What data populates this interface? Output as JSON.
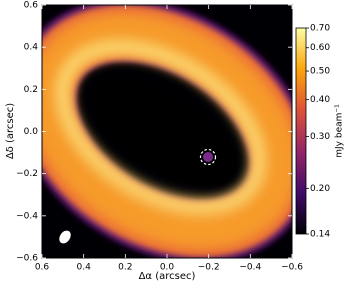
{
  "chart_data": {
    "type": "image",
    "xlabel": "Δα (arcsec)",
    "ylabel": "Δδ (arcsec)",
    "xlim": [
      0.6,
      -0.6
    ],
    "ylim": [
      -0.6,
      0.6
    ],
    "xticks": [
      0.6,
      0.4,
      0.2,
      {
        "value": 0,
        "label": "0.0"
      },
      {
        "value": -0.2,
        "label": "−0.2"
      },
      {
        "value": -0.4,
        "label": "−0.4"
      },
      {
        "value": -0.6,
        "label": "−0.6"
      }
    ],
    "yticks": [
      {
        "value": -0.6,
        "label": "−0.6"
      },
      {
        "value": -0.4,
        "label": "−0.4"
      },
      {
        "value": -0.2,
        "label": "−0.2"
      },
      {
        "value": 0,
        "label": "0.0"
      },
      0.2,
      0.4,
      0.6
    ],
    "colorbar": {
      "label": "mJy beam⁻¹",
      "lim": [
        0.14,
        0.7
      ],
      "log": true,
      "ticks": [
        {
          "value": 0.7,
          "label": "0.70"
        },
        {
          "value": 0.6,
          "label": "0.60"
        },
        {
          "value": 0.5,
          "label": "0.50"
        },
        {
          "value": 0.4,
          "label": "0.40"
        },
        {
          "value": 0.3,
          "label": "0.30"
        },
        {
          "value": 0.2,
          "label": "0.20"
        },
        0.14
      ],
      "colors": [
        "#000004",
        "#420a68",
        "#932667",
        "#dd513a",
        "#fca50a",
        "#fcffa4"
      ]
    }
  }
}
